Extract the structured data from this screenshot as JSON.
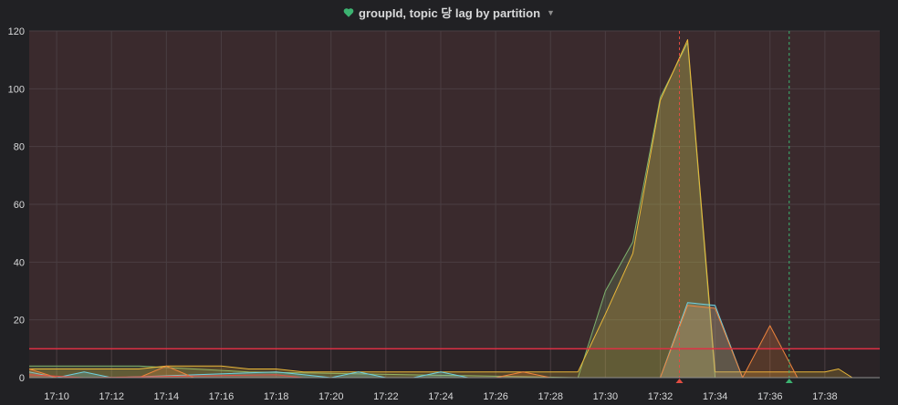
{
  "panel": {
    "title": "groupId, topic 당 lag by partition",
    "title_icon": "heart-icon",
    "title_icon_color": "#3cb371",
    "menu_caret": "chevron-down-icon"
  },
  "colors": {
    "background": "#212124",
    "plot_background": "#3a2a2d",
    "grid": "#4a3e42",
    "threshold": "#e02f44"
  },
  "chart_data": {
    "type": "area",
    "title": "groupId, topic 당 lag by partition",
    "xlabel": "",
    "ylabel": "",
    "x_range": [
      "17:09",
      "17:40"
    ],
    "ylim": [
      0,
      120
    ],
    "x_ticks": [
      "17:10",
      "17:12",
      "17:14",
      "17:16",
      "17:18",
      "17:20",
      "17:22",
      "17:24",
      "17:26",
      "17:28",
      "17:30",
      "17:32",
      "17:34",
      "17:36",
      "17:38"
    ],
    "y_ticks": [
      0,
      20,
      40,
      60,
      80,
      100,
      120
    ],
    "grid": true,
    "legend": "none",
    "threshold": {
      "value": 10,
      "color": "#e02f44",
      "fill_above": true
    },
    "annotations": [
      {
        "time": "17:32.7",
        "color": "#e24d42",
        "style": "dashed"
      },
      {
        "time": "17:36.7",
        "color": "#3cb371",
        "style": "dashed"
      }
    ],
    "series": [
      {
        "color": "#7eb26d",
        "points": [
          [
            "17:09",
            4
          ],
          [
            "17:13",
            4
          ],
          [
            "17:15",
            3
          ],
          [
            "17:17",
            2
          ],
          [
            "17:29",
            0
          ],
          [
            "17:30",
            30
          ],
          [
            "17:31",
            47
          ],
          [
            "17:32",
            97
          ],
          [
            "17:33",
            116
          ],
          [
            "17:34",
            0
          ],
          [
            "17:38",
            0
          ],
          [
            "17:39",
            0
          ]
        ]
      },
      {
        "color": "#eab839",
        "points": [
          [
            "17:09",
            3
          ],
          [
            "17:13",
            3
          ],
          [
            "17:14",
            4
          ],
          [
            "17:16",
            4
          ],
          [
            "17:17",
            3
          ],
          [
            "17:18",
            3
          ],
          [
            "17:19",
            2
          ],
          [
            "17:29",
            2
          ],
          [
            "17:30",
            22
          ],
          [
            "17:31",
            43
          ],
          [
            "17:32",
            96
          ],
          [
            "17:33",
            117
          ],
          [
            "17:34",
            2
          ],
          [
            "17:38",
            2
          ],
          [
            "17:38.5",
            3
          ],
          [
            "17:39",
            0
          ]
        ]
      },
      {
        "color": "#6ed0e0",
        "points": [
          [
            "17:09",
            2
          ],
          [
            "17:10",
            0
          ],
          [
            "17:11",
            2
          ],
          [
            "17:12",
            0
          ],
          [
            "17:18",
            2
          ],
          [
            "17:19",
            1
          ],
          [
            "17:20",
            0
          ],
          [
            "17:21",
            2
          ],
          [
            "17:22",
            0
          ],
          [
            "17:23",
            0
          ],
          [
            "17:24",
            2
          ],
          [
            "17:25",
            0
          ],
          [
            "17:32",
            0
          ],
          [
            "17:33",
            26
          ],
          [
            "17:34",
            25
          ],
          [
            "17:35",
            0
          ],
          [
            "17:39",
            0
          ]
        ]
      },
      {
        "color": "#ef843c",
        "points": [
          [
            "17:09",
            3
          ],
          [
            "17:10",
            0
          ],
          [
            "17:13",
            0
          ],
          [
            "17:14",
            4
          ],
          [
            "17:15",
            0
          ],
          [
            "17:26",
            0
          ],
          [
            "17:27",
            2
          ],
          [
            "17:28",
            0
          ],
          [
            "17:32",
            0
          ],
          [
            "17:33",
            25
          ],
          [
            "17:34",
            24
          ],
          [
            "17:35",
            0
          ],
          [
            "17:36",
            18
          ],
          [
            "17:37",
            0
          ],
          [
            "17:39",
            0
          ]
        ]
      },
      {
        "color": "#e24d42",
        "points": [
          [
            "17:09",
            1
          ],
          [
            "17:11",
            0
          ],
          [
            "17:18",
            1
          ],
          [
            "17:19",
            0
          ],
          [
            "17:39",
            0
          ]
        ]
      }
    ]
  }
}
